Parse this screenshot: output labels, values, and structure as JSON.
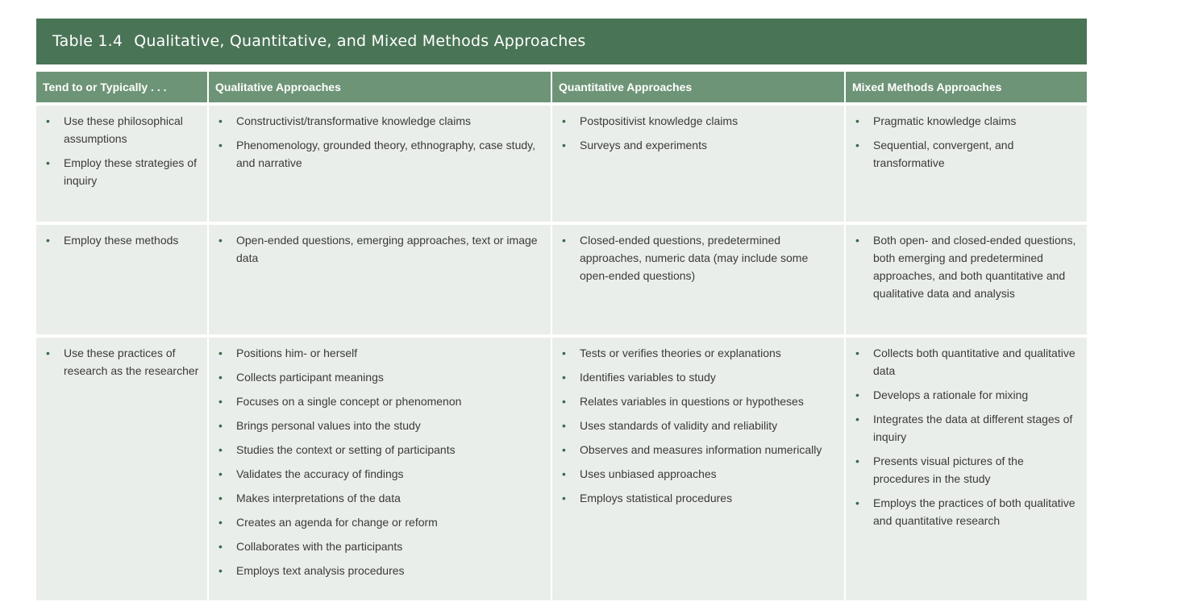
{
  "table": {
    "number": "Table 1.4",
    "title": "Qualitative, Quantitative, and Mixed Methods Approaches",
    "headers": [
      "Tend to or Typically . . .",
      "Qualitative Approaches",
      "Quantitative Approaches",
      "Mixed Methods Approaches"
    ],
    "rows": [
      {
        "tend": [
          "Use these philosophical assumptions",
          "Employ these strategies of inquiry"
        ],
        "qualitative": [
          "Constructivist/transformative knowledge claims",
          "Phenomenology, grounded theory, ethnography, case study, and narrative"
        ],
        "quantitative": [
          "Postpositivist knowledge claims",
          "Surveys and experiments"
        ],
        "mixed": [
          "Pragmatic knowledge claims",
          "Sequential, convergent, and transformative"
        ]
      },
      {
        "tend": [
          "Employ these methods"
        ],
        "qualitative": [
          "Open-ended questions, emerging approaches, text or image data"
        ],
        "quantitative": [
          "Closed-ended questions, predetermined approaches, numeric data (may include some open-ended questions)"
        ],
        "mixed": [
          "Both open- and closed-ended questions, both emerging and predetermined approaches, and both quantitative and qualitative data and analysis"
        ]
      },
      {
        "tend": [
          "Use these practices of research as the researcher"
        ],
        "qualitative": [
          "Positions him- or herself",
          "Collects participant meanings",
          "Focuses on a single concept or phenomenon",
          "Brings personal values into the study",
          "Studies the context or setting of participants",
          "Validates the accuracy of findings",
          "Makes interpretations of the data",
          "Creates an agenda for change or reform",
          "Collaborates with the participants",
          "Employs text analysis procedures"
        ],
        "quantitative": [
          "Tests or verifies theories or explanations",
          "Identifies variables to study",
          "Relates variables in questions or hypotheses",
          "Uses standards of validity and reliability",
          "Observes and measures information numerically",
          "Uses unbiased approaches",
          "Employs statistical procedures"
        ],
        "mixed": [
          "Collects both quantitative and qualitative data",
          "Develops a rationale for mixing",
          "Integrates the data at different stages of inquiry",
          "Presents visual pictures of the procedures in the study",
          "Employs the practices of both qualitative and quantitative research"
        ]
      }
    ]
  },
  "colors": {
    "title_bar": "#4a7456",
    "header_row": "#6e9477",
    "cell_background": "#eaeeea"
  }
}
